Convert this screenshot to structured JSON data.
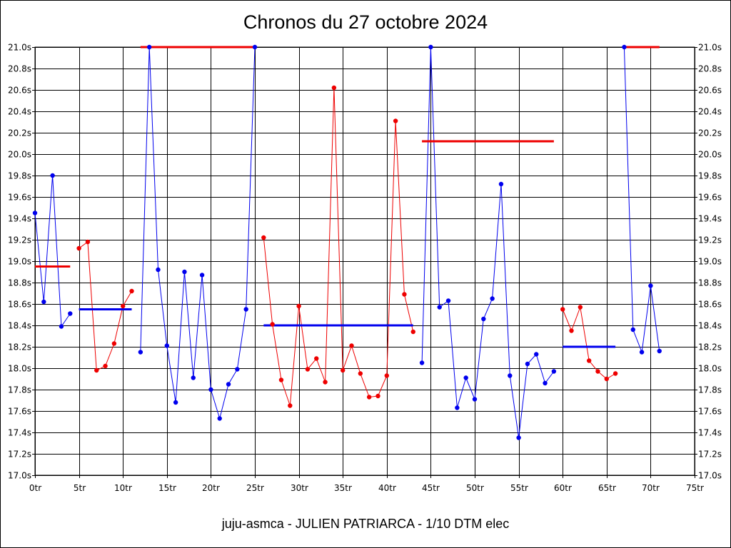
{
  "page": {
    "title": "Chronos du 27 octobre 2024",
    "footer": "juju-asmca - JULIEN PATRIARCA - 1/10 DTM elec"
  },
  "chart_data": {
    "type": "line",
    "title": "Chronos du 27 octobre 2024",
    "xlabel": "",
    "ylabel": "",
    "x_ticks": [
      "0tr",
      "5tr",
      "10tr",
      "15tr",
      "20tr",
      "25tr",
      "30tr",
      "35tr",
      "40tr",
      "45tr",
      "50tr",
      "55tr",
      "60tr",
      "65tr",
      "70tr",
      "75tr"
    ],
    "y_ticks": [
      "17.0s",
      "17.2s",
      "17.4s",
      "17.6s",
      "17.8s",
      "18.0s",
      "18.2s",
      "18.4s",
      "18.6s",
      "18.8s",
      "19.0s",
      "19.2s",
      "19.4s",
      "19.6s",
      "19.8s",
      "20.0s",
      "20.2s",
      "20.4s",
      "20.6s",
      "20.8s",
      "21.0s"
    ],
    "xlim": [
      0,
      75
    ],
    "ylim": [
      17.0,
      21.0
    ],
    "grid": true,
    "y_axis_both_sides": true,
    "series": [
      {
        "color": "#0000ee",
        "points": [
          [
            0,
            19.45
          ],
          [
            1,
            18.62
          ],
          [
            2,
            19.8
          ],
          [
            3,
            18.39
          ],
          [
            4,
            18.51
          ]
        ]
      },
      {
        "color": "#ee0000",
        "points": [
          [
            5,
            19.12
          ],
          [
            6,
            19.18
          ],
          [
            7,
            17.98
          ],
          [
            8,
            18.02
          ],
          [
            9,
            18.23
          ],
          [
            10,
            18.58
          ],
          [
            11,
            18.72
          ]
        ]
      },
      {
        "color": "#0000ee",
        "points": [
          [
            12,
            18.15
          ],
          [
            13,
            21.0
          ],
          [
            14,
            18.92
          ],
          [
            15,
            18.21
          ],
          [
            16,
            17.68
          ],
          [
            17,
            18.9
          ],
          [
            18,
            17.91
          ],
          [
            19,
            18.87
          ],
          [
            20,
            17.8
          ],
          [
            21,
            17.53
          ],
          [
            22,
            17.85
          ],
          [
            23,
            17.99
          ],
          [
            24,
            18.55
          ],
          [
            25,
            21.0
          ]
        ]
      },
      {
        "color": "#ee0000",
        "points": [
          [
            26,
            19.22
          ],
          [
            27,
            18.41
          ],
          [
            28,
            17.89
          ],
          [
            29,
            17.65
          ],
          [
            30,
            18.58
          ],
          [
            31,
            17.99
          ],
          [
            32,
            18.09
          ],
          [
            33,
            17.87
          ],
          [
            34,
            20.62
          ],
          [
            35,
            17.98
          ],
          [
            36,
            18.21
          ],
          [
            37,
            17.95
          ],
          [
            38,
            17.73
          ],
          [
            39,
            17.74
          ],
          [
            40,
            17.93
          ],
          [
            41,
            20.31
          ],
          [
            42,
            18.69
          ],
          [
            43,
            18.34
          ]
        ]
      },
      {
        "color": "#0000ee",
        "points": [
          [
            44,
            18.05
          ],
          [
            45,
            21.0
          ],
          [
            46,
            18.57
          ],
          [
            47,
            18.63
          ],
          [
            48,
            17.63
          ],
          [
            49,
            17.91
          ],
          [
            50,
            17.71
          ],
          [
            51,
            18.46
          ],
          [
            52,
            18.65
          ],
          [
            53,
            19.72
          ],
          [
            54,
            17.93
          ],
          [
            55,
            17.35
          ],
          [
            56,
            18.04
          ],
          [
            57,
            18.13
          ],
          [
            58,
            17.86
          ],
          [
            59,
            17.97
          ]
        ]
      },
      {
        "color": "#ee0000",
        "points": [
          [
            60,
            18.55
          ],
          [
            61,
            18.35
          ],
          [
            62,
            18.57
          ],
          [
            63,
            18.07
          ],
          [
            64,
            17.97
          ],
          [
            65,
            17.9
          ],
          [
            66,
            17.95
          ]
        ]
      },
      {
        "color": "#0000ee",
        "points": [
          [
            67,
            21.0
          ],
          [
            68,
            18.36
          ],
          [
            69,
            18.15
          ],
          [
            70,
            18.77
          ],
          [
            71,
            18.16
          ]
        ]
      }
    ],
    "average_lines": [
      {
        "color": "#ee0000",
        "x": [
          0,
          4
        ],
        "y": 18.95
      },
      {
        "color": "#0000ee",
        "x": [
          5,
          11
        ],
        "y": 18.55
      },
      {
        "color": "#ee0000",
        "x": [
          12,
          25
        ],
        "y": 21.0
      },
      {
        "color": "#0000ee",
        "x": [
          26,
          43
        ],
        "y": 18.4
      },
      {
        "color": "#ee0000",
        "x": [
          44,
          59
        ],
        "y": 20.12
      },
      {
        "color": "#0000ee",
        "x": [
          60,
          66
        ],
        "y": 18.2
      },
      {
        "color": "#ee0000",
        "x": [
          67,
          71
        ],
        "y": 21.0
      }
    ]
  }
}
